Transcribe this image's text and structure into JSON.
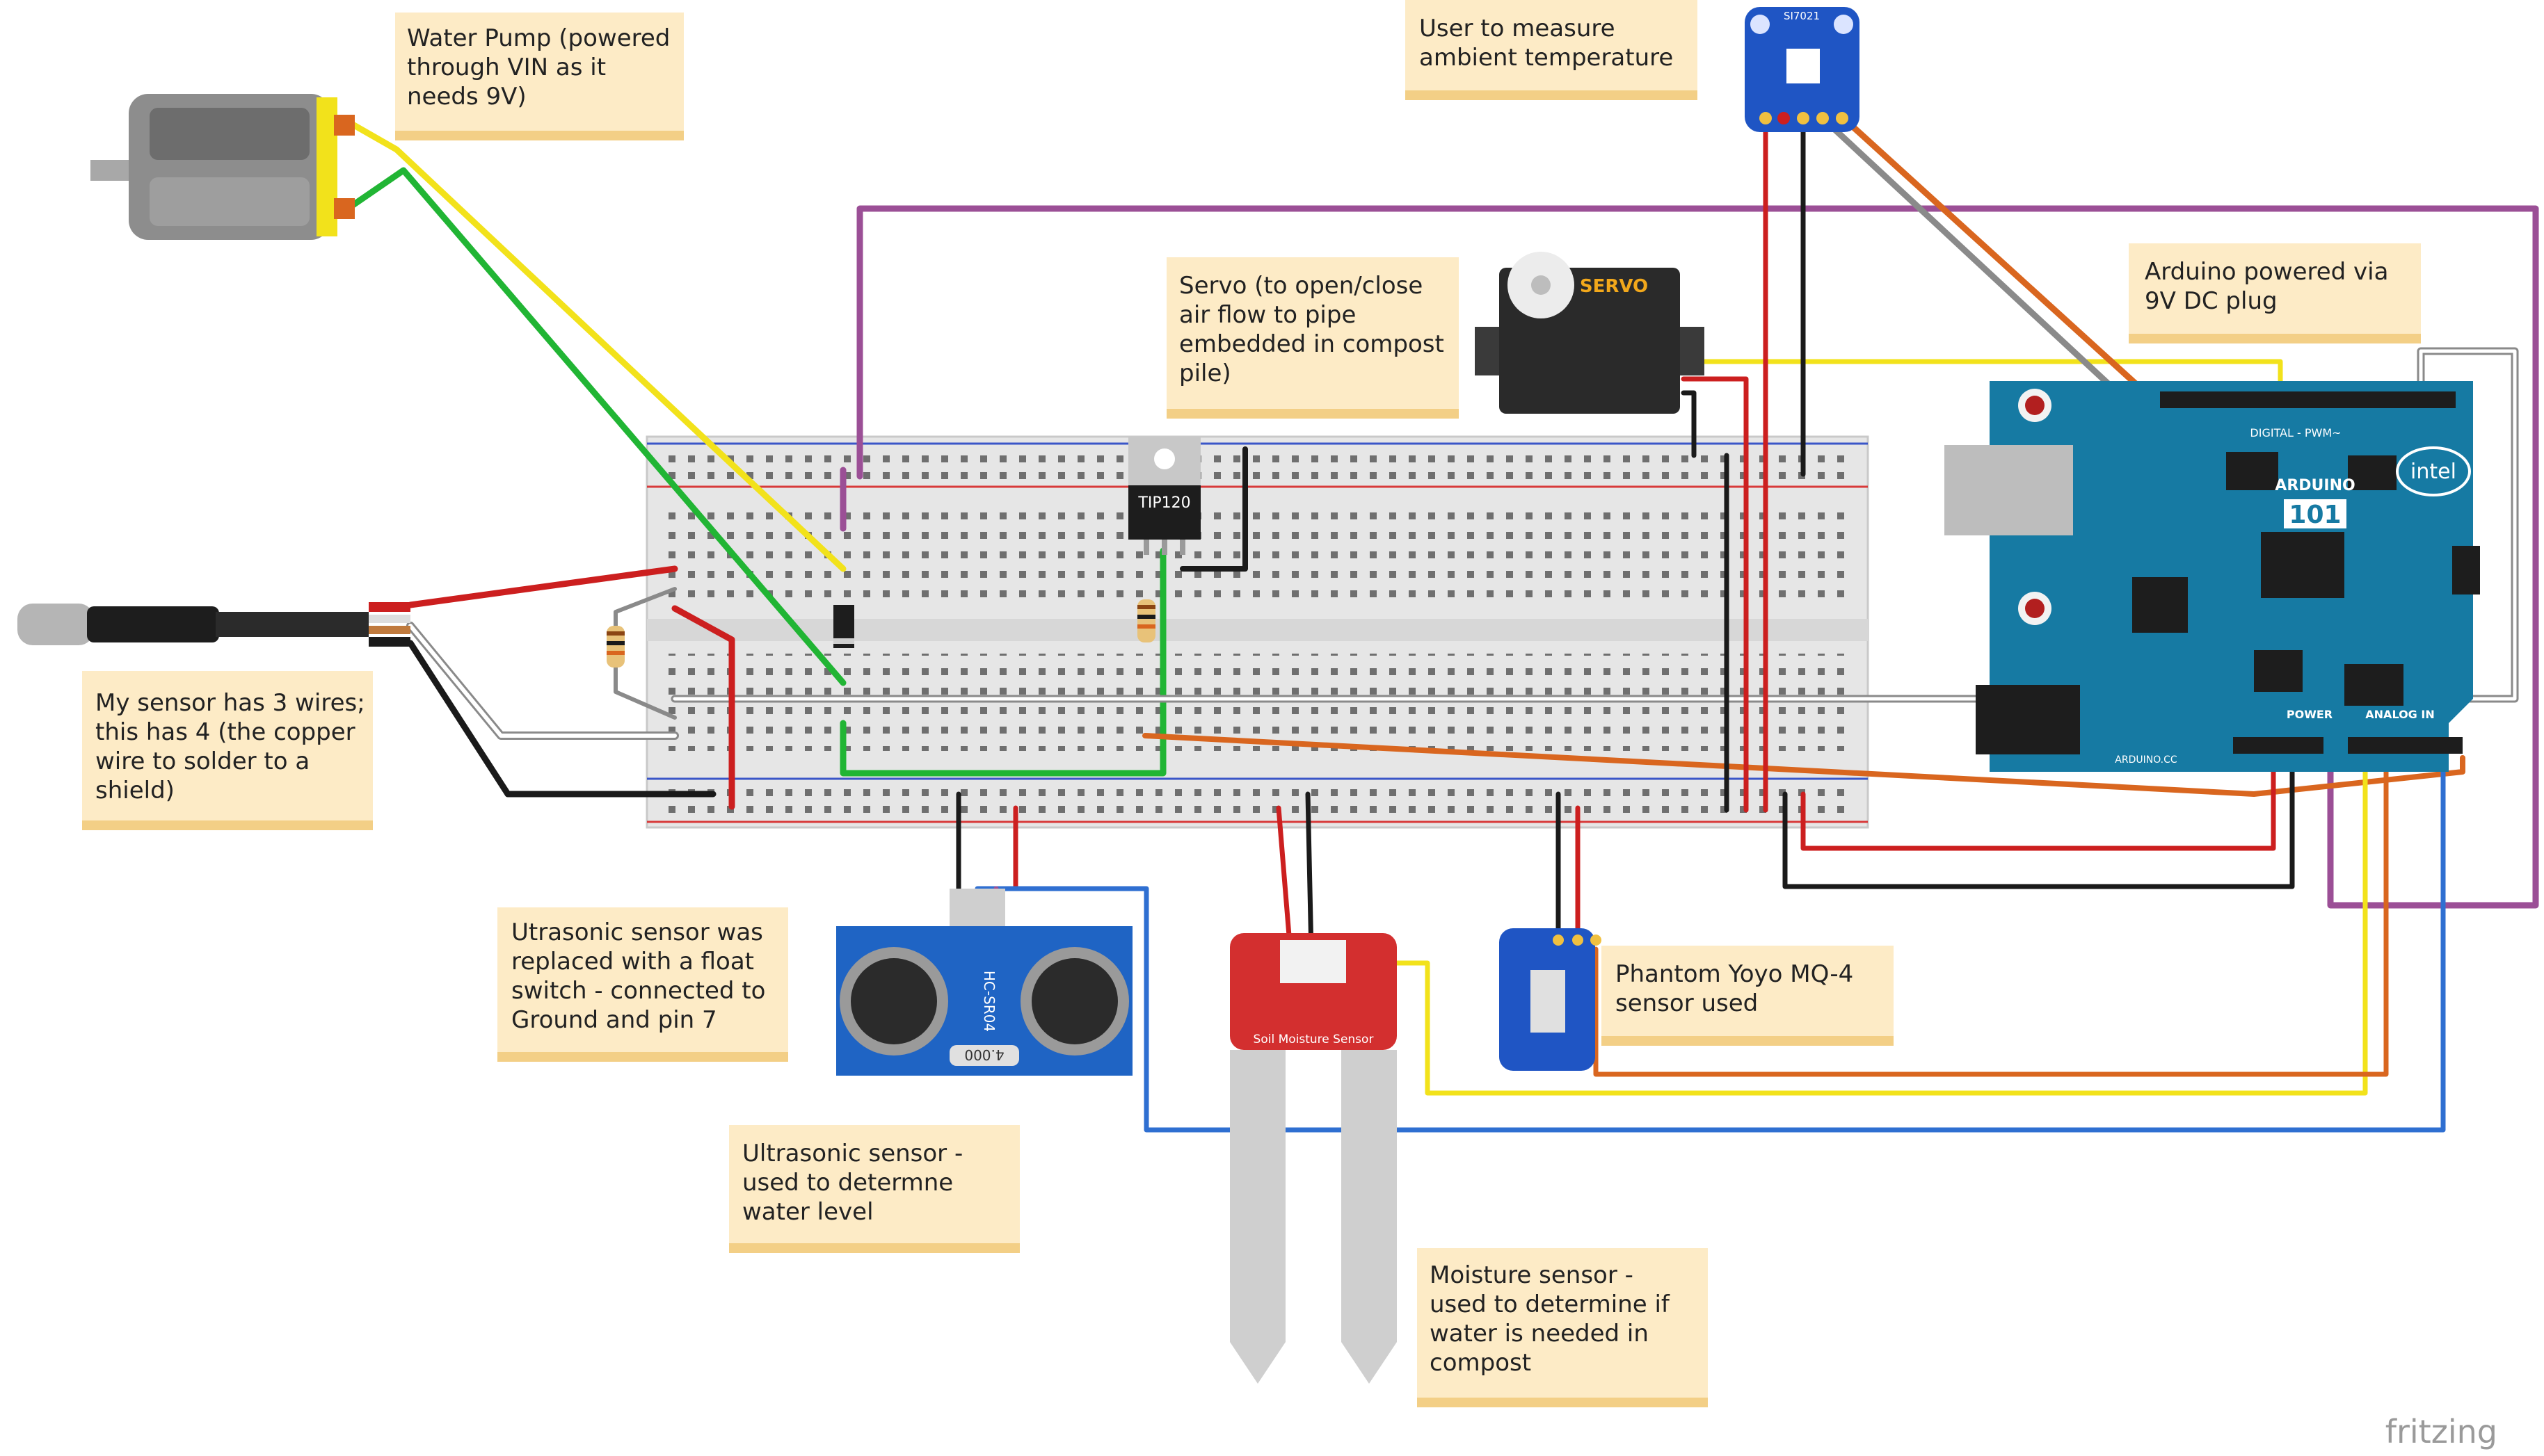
{
  "notes": {
    "pump": [
      "Water Pump (powered",
      "through VIN as it",
      "needs 9V)"
    ],
    "temp": [
      "User to measure",
      "ambient temperature"
    ],
    "servo": [
      "Servo (to open/close",
      "air flow to pipe",
      "embedded in compost",
      "pile)"
    ],
    "arduino": [
      "Arduino powered via",
      "9V DC plug"
    ],
    "sensor_wires": [
      "My sensor has 3 wires;",
      "this has 4 (the copper",
      "wire to solder to a",
      "shield)"
    ],
    "float_switch": [
      "Utrasonic sensor was",
      "replaced with a float",
      "switch - connected to",
      "Ground and pin 7"
    ],
    "mq4": [
      "Phantom Yoyo MQ-4",
      "sensor used"
    ],
    "ultrasonic": [
      "Ultrasonic sensor -",
      "used to determne",
      "water level"
    ],
    "moisture": [
      "Moisture sensor -",
      "used to determine if",
      "water is needed in",
      "compost"
    ]
  },
  "parts": {
    "servo_label": "SERVO",
    "transistor_label": "TIP120",
    "ultrasonic_label": "HC-SR04",
    "ultrasonic_crystal": "4.000",
    "moisture_label": "Soil Moisture Sensor",
    "temp_sensor_label": "SI7021",
    "arduino_name": "ARDUINO",
    "arduino_model": "101",
    "arduino_brand": "intel",
    "arduino_digital": "DIGITAL - PWM~",
    "arduino_power": "POWER",
    "arduino_analog": "ANALOG IN",
    "arduino_site": "ARDUINO.CC"
  },
  "watermark": "fritzing",
  "colors": {
    "red": "#cc1f1f",
    "black": "#1a1a1a",
    "green": "#21b534",
    "yellow": "#f2e21b",
    "orange": "#d9661f",
    "purple": "#9b4f96",
    "blue": "#2f6fd1",
    "grey": "#8a8a8a",
    "note": "#fdebc6",
    "board": "#167aa3"
  }
}
